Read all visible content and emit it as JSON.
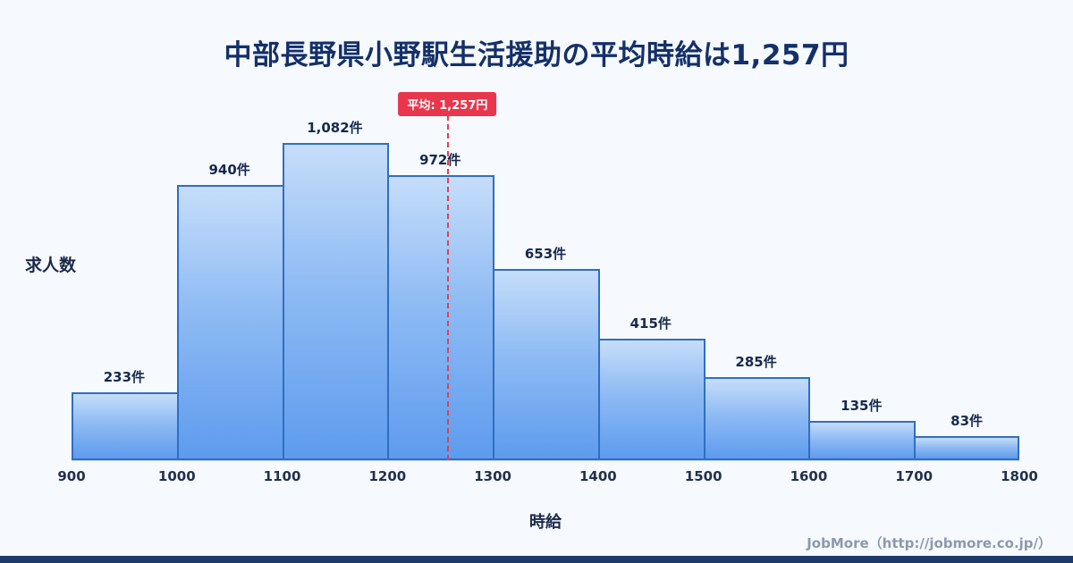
{
  "title": "中部長野県小野駅生活援助の平均時給は1,257円",
  "chart_data": {
    "type": "bar",
    "title": "中部長野県小野駅生活援助の平均時給は1,257円",
    "categories": [
      "900-1000",
      "1000-1100",
      "1100-1200",
      "1200-1300",
      "1300-1400",
      "1400-1500",
      "1500-1600",
      "1600-1700",
      "1700-1800"
    ],
    "values": [
      233,
      940,
      1082,
      972,
      653,
      415,
      285,
      135,
      83
    ],
    "value_labels": [
      "233件",
      "940件",
      "1,082件",
      "972件",
      "653件",
      "415件",
      "285件",
      "135件",
      "83件"
    ],
    "x_ticks": [
      "900",
      "1000",
      "1100",
      "1200",
      "1300",
      "1400",
      "1500",
      "1600",
      "1700",
      "1800"
    ],
    "x_range": [
      900,
      1800
    ],
    "ylim": [
      0,
      1220
    ],
    "xlabel": "時給",
    "ylabel": "求人数",
    "average": 1257,
    "average_label": "平均: 1,257円",
    "grid": false,
    "legend": "none",
    "colors": {
      "bar_fill_top": "#c6ddfa",
      "bar_fill_bottom": "#5e9bee",
      "bar_border": "#2f6fc1",
      "average_line": "#e0424f",
      "average_badge_bg": "#e8374d",
      "title_text": "#14306a",
      "background": "#f6f9fd",
      "bottom_bar": "#1d3a6b"
    }
  },
  "footer": {
    "credit": "JobMore（http://jobmore.co.jp/）"
  }
}
